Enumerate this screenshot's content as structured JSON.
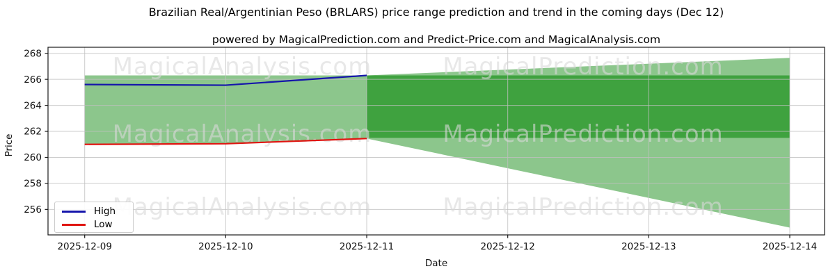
{
  "figure": {
    "title": "Brazilian Real/Argentinian Peso (BRLARS) price range prediction and trend in the coming days (Dec 12)",
    "subtitle": "powered by MagicalPrediction.com and Predict-Price.com and MagicalAnalysis.com"
  },
  "watermark": {
    "left_text": "MagicalAnalysis.com",
    "right_text": "MagicalPrediction.com",
    "color": "#d9d9d9"
  },
  "chart_data": {
    "type": "area",
    "title": "Brazilian Real/Argentinian Peso (BRLARS) price range prediction and trend in the coming days (Dec 12)",
    "xlabel": "Date",
    "ylabel": "Price",
    "categories": [
      "2025-12-09",
      "2025-12-10",
      "2025-12-11",
      "2025-12-12",
      "2025-12-13",
      "2025-12-14"
    ],
    "y_tick_values": [
      268,
      266,
      264,
      262,
      260,
      258,
      256
    ],
    "ylim": [
      253.95,
      268.45
    ],
    "grid": true,
    "series": [
      {
        "name": "High",
        "type": "line",
        "color": "#1515ab",
        "x_index": [
          0,
          1,
          2
        ],
        "values": [
          265.6,
          265.55,
          266.3
        ]
      },
      {
        "name": "Low",
        "type": "line",
        "color": "#e01511",
        "x_index": [
          0,
          1,
          2
        ],
        "values": [
          261.0,
          261.05,
          261.45
        ]
      }
    ],
    "bands": [
      {
        "name": "history-range",
        "color": "#8cc68c",
        "x_index": [
          0,
          1,
          2
        ],
        "top": [
          266.3,
          266.3,
          266.3
        ],
        "bottom": [
          261.0,
          261.05,
          261.45
        ]
      },
      {
        "name": "forecast-cone",
        "color": "#8cc68c",
        "x_index": [
          2,
          5
        ],
        "top": [
          266.3,
          267.65
        ],
        "bottom": [
          261.45,
          254.6
        ]
      },
      {
        "name": "forecast-range",
        "color": "#3fa23f",
        "x_index": [
          2,
          5
        ],
        "top": [
          266.3,
          266.3
        ],
        "bottom": [
          261.5,
          261.5
        ]
      }
    ],
    "legend": {
      "position": "lower left",
      "entries": [
        {
          "label": "High",
          "color": "#1515ab"
        },
        {
          "label": "Low",
          "color": "#e01511"
        }
      ]
    }
  },
  "colors": {
    "background": "#ffffff",
    "grid": "#c0c0c0",
    "spine": "#1a1a1a",
    "tick_label": "#111111",
    "band_light": "#8cc68c",
    "band_dark": "#3fa23f"
  }
}
